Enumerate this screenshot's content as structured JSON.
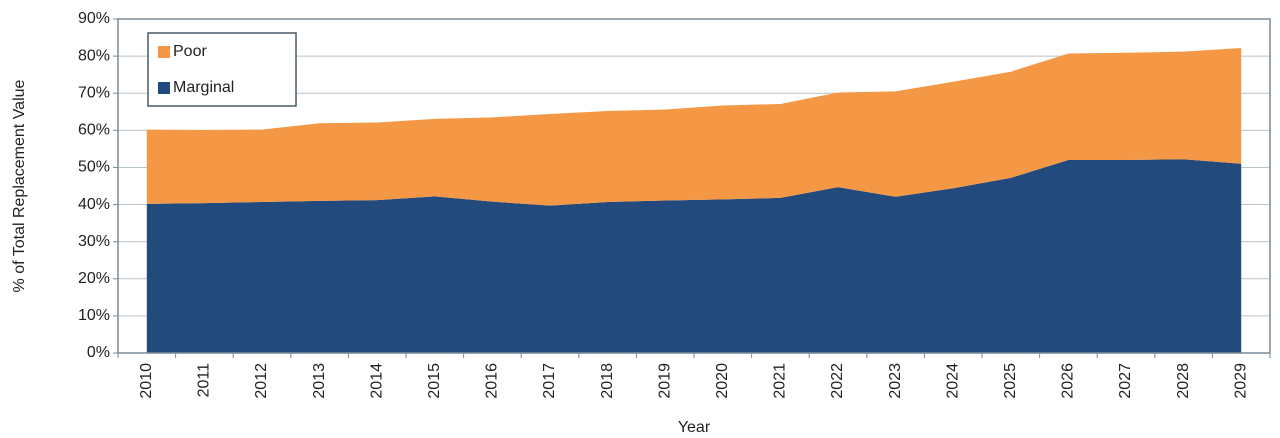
{
  "chart_data": {
    "type": "stacked-area",
    "y_label": "% of Total Replacement Value",
    "x_label": "Year",
    "categories": [
      "2010",
      "2011",
      "2012",
      "2013",
      "2014",
      "2015",
      "2016",
      "2017",
      "2018",
      "2019",
      "2020",
      "2021",
      "2022",
      "2023",
      "2024",
      "2025",
      "2026",
      "2027",
      "2028",
      "2029"
    ],
    "series": [
      {
        "name": "Marginal",
        "color": "#234a7c",
        "values": [
          40.2,
          40.4,
          40.7,
          41.0,
          41.2,
          42.2,
          40.8,
          39.7,
          40.7,
          41.1,
          41.4,
          41.8,
          44.7,
          42.1,
          44.4,
          47.2,
          52.0,
          52.0,
          52.2,
          51.0
        ]
      },
      {
        "name": "Poor",
        "color": "#f59846",
        "values": [
          20.0,
          19.7,
          19.5,
          20.9,
          20.9,
          20.9,
          22.7,
          24.7,
          24.5,
          24.5,
          25.3,
          25.3,
          25.5,
          28.4,
          28.7,
          28.6,
          28.7,
          28.9,
          29.0,
          31.2
        ]
      }
    ],
    "ylim": [
      0,
      90
    ],
    "yticks": [
      {
        "value": 0,
        "label": "0%"
      },
      {
        "value": 10,
        "label": "10%"
      },
      {
        "value": 20,
        "label": "20%"
      },
      {
        "value": 30,
        "label": "30%"
      },
      {
        "value": 40,
        "label": "40%"
      },
      {
        "value": 50,
        "label": "50%"
      },
      {
        "value": 60,
        "label": "60%"
      },
      {
        "value": 70,
        "label": "70%"
      },
      {
        "value": 80,
        "label": "80%"
      },
      {
        "value": 90,
        "label": "90%"
      }
    ],
    "grid": true
  }
}
